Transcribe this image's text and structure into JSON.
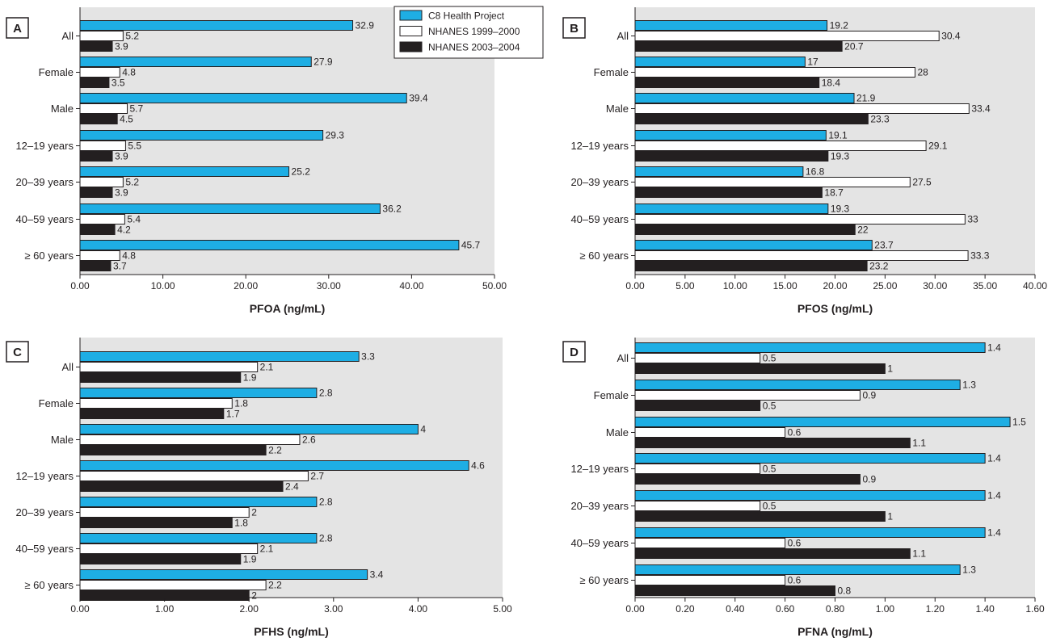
{
  "colors": {
    "series": [
      "#1eaee4",
      "#ffffff",
      "#231f20"
    ],
    "plot_background": "#e4e4e4",
    "bar_outline": "#231f20"
  },
  "legend": {
    "entries": [
      "C8 Health Project",
      "NHANES 1999–2000",
      "NHANES 2003–2004"
    ]
  },
  "chart_data": [
    {
      "type": "bar",
      "orientation": "horizontal",
      "panel_label": "A",
      "xlabel": "PFOA (ng/mL)",
      "xlim": [
        0,
        50
      ],
      "xticks": [
        "0.00",
        "10.00",
        "20.00",
        "30.00",
        "40.00",
        "50.00"
      ],
      "tick_values": [
        0,
        10,
        20,
        30,
        40,
        50
      ],
      "categories": [
        "All",
        "Female",
        "Male",
        "12–19 years",
        "20–39 years",
        "40–59 years",
        "≥ 60 years"
      ],
      "series": [
        {
          "name": "C8 Health Project",
          "values": [
            32.9,
            27.9,
            39.4,
            29.3,
            25.2,
            36.2,
            45.7
          ],
          "labels": [
            "32.9",
            "27.9",
            "39.4",
            "29.3",
            "25.2",
            "36.2",
            "45.7"
          ]
        },
        {
          "name": "NHANES 1999–2000",
          "values": [
            5.2,
            4.8,
            5.7,
            5.5,
            5.2,
            5.4,
            4.8
          ],
          "labels": [
            "5.2",
            "4.8",
            "5.7",
            "5.5",
            "5.2",
            "5.4",
            "4.8"
          ]
        },
        {
          "name": "NHANES 2003–2004",
          "values": [
            3.9,
            3.5,
            4.5,
            3.9,
            3.9,
            4.2,
            3.7
          ],
          "labels": [
            "3.9",
            "3.5",
            "4.5",
            "3.9",
            "3.9",
            "4.2",
            "3.7"
          ]
        }
      ],
      "legend": "top-right",
      "grid": false
    },
    {
      "type": "bar",
      "orientation": "horizontal",
      "panel_label": "B",
      "xlabel": "PFOS (ng/mL)",
      "xlim": [
        0,
        40
      ],
      "xticks": [
        "0.00",
        "5.00",
        "10.00",
        "15.00",
        "20.00",
        "25.00",
        "30.00",
        "35.00",
        "40.00"
      ],
      "tick_values": [
        0,
        5,
        10,
        15,
        20,
        25,
        30,
        35,
        40
      ],
      "categories": [
        "All",
        "Female",
        "Male",
        "12–19 years",
        "20–39 years",
        "40–59 years",
        "≥ 60 years"
      ],
      "series": [
        {
          "name": "C8 Health Project",
          "values": [
            19.2,
            17,
            21.9,
            19.1,
            16.8,
            19.3,
            23.7
          ],
          "labels": [
            "19.2",
            "17",
            "21.9",
            "19.1",
            "16.8",
            "19.3",
            "23.7"
          ]
        },
        {
          "name": "NHANES 1999–2000",
          "values": [
            30.4,
            28,
            33.4,
            29.1,
            27.5,
            33,
            33.3
          ],
          "labels": [
            "30.4",
            "28",
            "33.4",
            "29.1",
            "27.5",
            "33",
            "33.3"
          ]
        },
        {
          "name": "NHANES 2003–2004",
          "values": [
            20.7,
            18.4,
            23.3,
            19.3,
            18.7,
            22,
            23.2
          ],
          "labels": [
            "20.7",
            "18.4",
            "23.3",
            "19.3",
            "18.7",
            "22",
            "23.2"
          ]
        }
      ],
      "grid": false
    },
    {
      "type": "bar",
      "orientation": "horizontal",
      "panel_label": "C",
      "xlabel": "PFHS (ng/mL)",
      "xlim": [
        0,
        5
      ],
      "xticks": [
        "0.00",
        "1.00",
        "2.00",
        "3.00",
        "4.00",
        "5.00"
      ],
      "tick_values": [
        0,
        1,
        2,
        3,
        4,
        5
      ],
      "categories": [
        "All",
        "Female",
        "Male",
        "12–19 years",
        "20–39 years",
        "40–59 years",
        "≥ 60 years"
      ],
      "series": [
        {
          "name": "C8 Health Project",
          "values": [
            3.3,
            2.8,
            4,
            4.6,
            2.8,
            2.8,
            3.4
          ],
          "labels": [
            "3.3",
            "2.8",
            "4",
            "4.6",
            "2.8",
            "2.8",
            "3.4"
          ]
        },
        {
          "name": "NHANES 1999–2000",
          "values": [
            2.1,
            1.8,
            2.6,
            2.7,
            2,
            2.1,
            2.2
          ],
          "labels": [
            "2.1",
            "1.8",
            "2.6",
            "2.7",
            "2",
            "2.1",
            "2.2"
          ]
        },
        {
          "name": "NHANES 2003–2004",
          "values": [
            1.9,
            1.7,
            2.2,
            2.4,
            1.8,
            1.9,
            2
          ],
          "labels": [
            "1.9",
            "1.7",
            "2.2",
            "2.4",
            "1.8",
            "1.9",
            "2"
          ]
        }
      ],
      "grid": false
    },
    {
      "type": "bar",
      "orientation": "horizontal",
      "panel_label": "D",
      "xlabel": "PFNA (ng/mL)",
      "xlim": [
        0,
        1.6
      ],
      "xticks": [
        "0.00",
        "0.20",
        "0.40",
        "0.60",
        "0.80",
        "1.00",
        "1.20",
        "1.40",
        "1.60"
      ],
      "tick_values": [
        0,
        0.2,
        0.4,
        0.6,
        0.8,
        1.0,
        1.2,
        1.4,
        1.6
      ],
      "categories": [
        "All",
        "Female",
        "Male",
        "12–19 years",
        "20–39 years",
        "40–59 years",
        "≥ 60 years"
      ],
      "series": [
        {
          "name": "C8 Health Project",
          "values": [
            1.4,
            1.3,
            1.5,
            1.4,
            1.4,
            1.4,
            1.3
          ],
          "labels": [
            "1.4",
            "1.3",
            "1.5",
            "1.4",
            "1.4",
            "1.4",
            "1.3"
          ]
        },
        {
          "name": "NHANES 1999–2000",
          "values": [
            0.5,
            0.9,
            0.6,
            0.5,
            0.5,
            0.6,
            0.6
          ],
          "labels": [
            "0.5",
            "0.9",
            "0.6",
            "0.5",
            "0.5",
            "0.6",
            "0.6"
          ]
        },
        {
          "name": "NHANES 2003–2004",
          "values": [
            1,
            0.5,
            1.1,
            0.9,
            1,
            1.1,
            0.8
          ],
          "labels": [
            "1",
            "0.5",
            "1.1",
            "0.9",
            "1",
            "1.1",
            "0.8"
          ]
        }
      ],
      "grid": false
    }
  ]
}
